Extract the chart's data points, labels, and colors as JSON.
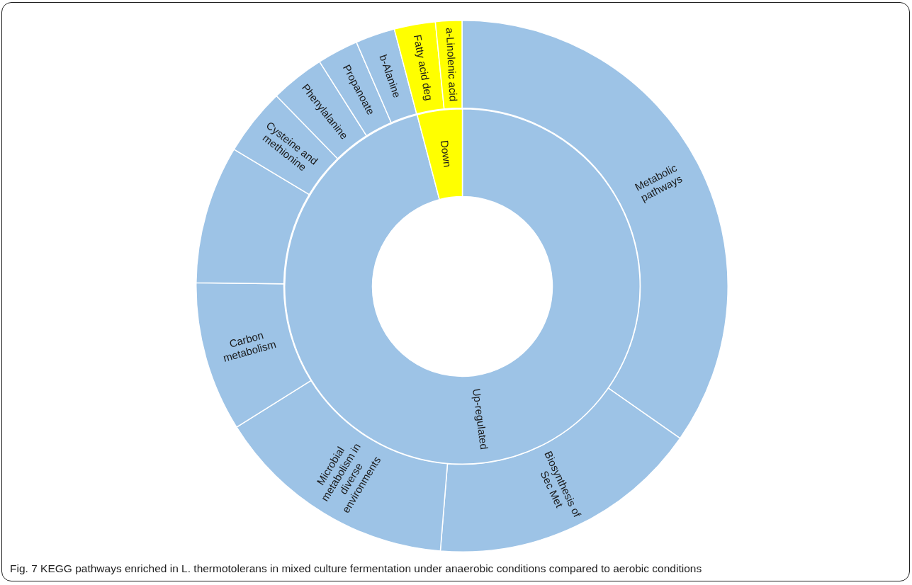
{
  "chart_data": [
    {
      "type": "donut",
      "categories": [
        "Metabolic pathways",
        "Biosynthesis of Sec Met",
        "Microbial metabolism in diverse environments",
        "Carbon metabolism",
        null,
        "Cysteine and methionine",
        "Phenylalanine",
        "Propanoate",
        "b-Alanine",
        "Fatty acid deg",
        "a-Linolenic acid"
      ],
      "values": [
        34.7,
        16.6,
        14.8,
        9.1,
        8.4,
        4.1,
        3.3,
        2.5,
        2.4,
        2.5,
        1.6
      ],
      "colors": [
        "#9dc3e6",
        "#9dc3e6",
        "#9dc3e6",
        "#9dc3e6",
        "#9dc3e6",
        "#9dc3e6",
        "#9dc3e6",
        "#9dc3e6",
        "#9dc3e6",
        "#ffff00",
        "#ffff00"
      ],
      "annotations": [
        "Fig. 7 KEGG pathways enriched in L. thermotolerans in mixed culture fermentation under anaerobic conditions compared to aerobic conditions"
      ]
    },
    {
      "type": "donut",
      "categories": [
        "Up-regulated",
        "Down"
      ],
      "values": [
        95.9,
        4.1
      ],
      "colors": [
        "#9dc3e6",
        "#ffff00"
      ]
    }
  ]
}
